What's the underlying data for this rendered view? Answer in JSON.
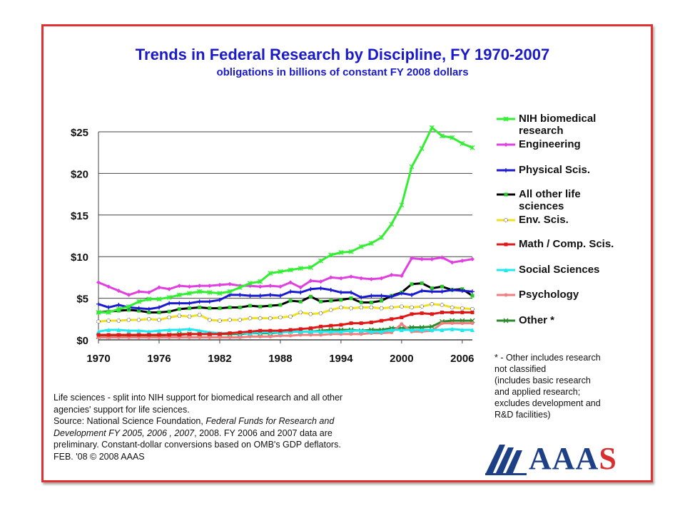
{
  "title": "Trends in Federal Research by Discipline, FY 1970-2007",
  "subtitle": "obligations in billions of constant FY 2008 dollars",
  "notes": [
    "Life sciences - split into NIH support for biomedical research and all other",
    "agencies' support for life sciences.",
    "Source: National Science Foundation, Federal Funds for Research and",
    "Development FY  2005, 2006 , 2007, 2008. FY 2006 and 2007 data are",
    "preliminary. Constant-dollar conversions based on OMB's GDP deflators.",
    "FEB. '08 © 2008 AAAS"
  ],
  "footnote": [
    "* - Other includes research",
    "not classified",
    "(includes basic research",
    "and applied research;",
    "excludes development and",
    "R&D facilities)"
  ],
  "logo": {
    "text_main": "AAA",
    "text_last": "S",
    "color": "#1d3f86",
    "accent": "#d83030"
  },
  "chart_data": {
    "type": "line",
    "title": "Trends in Federal Research by Discipline, FY 1970-2007",
    "subtitle": "obligations in billions of constant FY 2008 dollars",
    "xlabel": "",
    "ylabel": "",
    "xlim": [
      1970,
      2007
    ],
    "ylim": [
      0,
      25
    ],
    "yticks": [
      0,
      5,
      10,
      15,
      20,
      25
    ],
    "ytick_labels": [
      "$0",
      "$5",
      "$10",
      "$15",
      "$20",
      "$25"
    ],
    "xticks": [
      1970,
      1976,
      1982,
      1988,
      1994,
      2000,
      2006
    ],
    "xtick_labels": [
      "1970",
      "1976",
      "1982",
      "1988",
      "1994",
      "2000",
      "2006"
    ],
    "grid": "horizontal",
    "legend_position": "right",
    "x": [
      1970,
      1971,
      1972,
      1973,
      1974,
      1975,
      1976,
      1977,
      1978,
      1979,
      1980,
      1981,
      1982,
      1983,
      1984,
      1985,
      1986,
      1987,
      1988,
      1989,
      1990,
      1991,
      1992,
      1993,
      1994,
      1995,
      1996,
      1997,
      1998,
      1999,
      2000,
      2001,
      2002,
      2003,
      2004,
      2005,
      2006,
      2007
    ],
    "series": [
      {
        "name": "NIH biomedical research",
        "color": "#33ee33",
        "marker": "star",
        "values": [
          3.3,
          3.3,
          3.7,
          4.0,
          4.6,
          4.9,
          4.9,
          5.1,
          5.4,
          5.6,
          5.8,
          5.7,
          5.6,
          5.8,
          6.3,
          6.8,
          7.0,
          8.0,
          8.2,
          8.4,
          8.6,
          8.7,
          9.5,
          10.2,
          10.5,
          10.6,
          11.2,
          11.6,
          12.3,
          13.9,
          16.2,
          20.8,
          23.0,
          25.5,
          24.5,
          24.3,
          23.6,
          23.1
        ]
      },
      {
        "name": "Engineering",
        "color": "#e040e0",
        "marker": "diamond",
        "values": [
          6.9,
          6.4,
          5.9,
          5.4,
          5.8,
          5.7,
          6.3,
          6.1,
          6.5,
          6.4,
          6.5,
          6.5,
          6.6,
          6.7,
          6.5,
          6.5,
          6.4,
          6.5,
          6.4,
          6.9,
          6.3,
          7.1,
          7.0,
          7.5,
          7.4,
          7.6,
          7.4,
          7.3,
          7.4,
          7.8,
          7.7,
          9.8,
          9.7,
          9.7,
          9.9,
          9.3,
          9.5,
          9.7
        ]
      },
      {
        "name": "Physical Scis.",
        "color": "#1a1ad0",
        "marker": "plus",
        "values": [
          4.3,
          3.9,
          4.2,
          3.9,
          3.8,
          3.7,
          3.9,
          4.4,
          4.4,
          4.4,
          4.6,
          4.6,
          4.8,
          5.4,
          5.4,
          5.3,
          5.3,
          5.4,
          5.3,
          5.8,
          5.7,
          6.1,
          6.2,
          6.0,
          5.7,
          5.7,
          5.1,
          5.3,
          5.3,
          5.2,
          5.6,
          5.4,
          5.9,
          5.8,
          5.8,
          6.0,
          5.9,
          5.8
        ]
      },
      {
        "name": "All other life sciences",
        "color": "#000000",
        "marker": "square-green",
        "values": [
          3.3,
          3.4,
          3.5,
          3.6,
          3.5,
          3.3,
          3.3,
          3.4,
          3.7,
          3.8,
          3.9,
          3.8,
          3.8,
          3.9,
          3.9,
          4.1,
          4.0,
          4.1,
          4.2,
          4.7,
          4.6,
          5.2,
          4.6,
          4.7,
          4.8,
          5.0,
          4.5,
          4.5,
          4.7,
          5.3,
          5.7,
          6.7,
          6.8,
          6.2,
          6.4,
          6.0,
          6.1,
          5.3
        ]
      },
      {
        "name": "Env. Scis.",
        "color": "#f0e020",
        "marker": "circle-dotted",
        "values": [
          2.2,
          2.3,
          2.3,
          2.4,
          2.4,
          2.5,
          2.4,
          2.7,
          2.9,
          2.8,
          3.0,
          2.4,
          2.3,
          2.4,
          2.4,
          2.6,
          2.6,
          2.6,
          2.7,
          2.8,
          3.3,
          3.1,
          3.2,
          3.6,
          3.9,
          3.8,
          3.9,
          3.9,
          3.8,
          3.9,
          4.0,
          3.9,
          4.0,
          4.3,
          4.2,
          3.9,
          3.8,
          3.7
        ]
      },
      {
        "name": "Math / Comp. Scis.",
        "color": "#e01818",
        "marker": "square",
        "values": [
          0.6,
          0.6,
          0.6,
          0.6,
          0.6,
          0.6,
          0.6,
          0.6,
          0.6,
          0.7,
          0.7,
          0.7,
          0.7,
          0.8,
          0.9,
          1.0,
          1.1,
          1.1,
          1.1,
          1.2,
          1.3,
          1.4,
          1.6,
          1.7,
          1.8,
          2.0,
          2.0,
          2.1,
          2.3,
          2.5,
          2.7,
          3.1,
          3.2,
          3.1,
          3.3,
          3.3,
          3.3,
          3.3
        ]
      },
      {
        "name": "Social Sciences",
        "color": "#20e8f0",
        "marker": "triangle",
        "values": [
          1.0,
          1.2,
          1.2,
          1.1,
          1.1,
          1.0,
          1.1,
          1.2,
          1.2,
          1.3,
          1.1,
          0.9,
          0.8,
          0.8,
          0.8,
          0.8,
          0.9,
          0.9,
          0.9,
          1.0,
          1.0,
          1.0,
          1.0,
          1.0,
          1.0,
          1.1,
          1.1,
          1.0,
          1.0,
          1.2,
          1.2,
          1.2,
          1.2,
          1.2,
          1.2,
          1.3,
          1.2,
          1.2
        ]
      },
      {
        "name": "Psychology",
        "color": "#f08080",
        "marker": "circle",
        "values": [
          0.3,
          0.3,
          0.3,
          0.3,
          0.3,
          0.3,
          0.3,
          0.3,
          0.3,
          0.3,
          0.3,
          0.3,
          0.3,
          0.3,
          0.3,
          0.4,
          0.4,
          0.4,
          0.5,
          0.5,
          0.6,
          0.6,
          0.6,
          0.7,
          0.7,
          0.7,
          0.7,
          0.8,
          0.8,
          0.9,
          1.9,
          1.0,
          1.0,
          1.1,
          2.0,
          2.0,
          2.0,
          2.0
        ]
      },
      {
        "name": "Other *",
        "color": "#2a8a2a",
        "marker": "x",
        "values": [
          0.4,
          0.4,
          0.5,
          0.5,
          0.5,
          0.5,
          0.5,
          0.6,
          0.7,
          0.7,
          0.7,
          0.7,
          0.7,
          0.7,
          0.7,
          0.8,
          0.8,
          0.8,
          0.9,
          1.0,
          1.0,
          1.0,
          1.1,
          1.2,
          1.2,
          1.2,
          1.1,
          1.2,
          1.2,
          1.4,
          1.4,
          1.5,
          1.5,
          1.6,
          2.2,
          2.3,
          2.3,
          2.3
        ]
      }
    ],
    "legend": [
      {
        "label": "NIH biomedical research"
      },
      {
        "label": "Engineering"
      },
      {
        "label": "Physical Scis."
      },
      {
        "label": "All other life sciences"
      },
      {
        "label": "Env. Scis."
      },
      {
        "label": "Math / Comp. Scis."
      },
      {
        "label": "Social Sciences"
      },
      {
        "label": "Psychology"
      },
      {
        "label": "Other *"
      }
    ]
  }
}
